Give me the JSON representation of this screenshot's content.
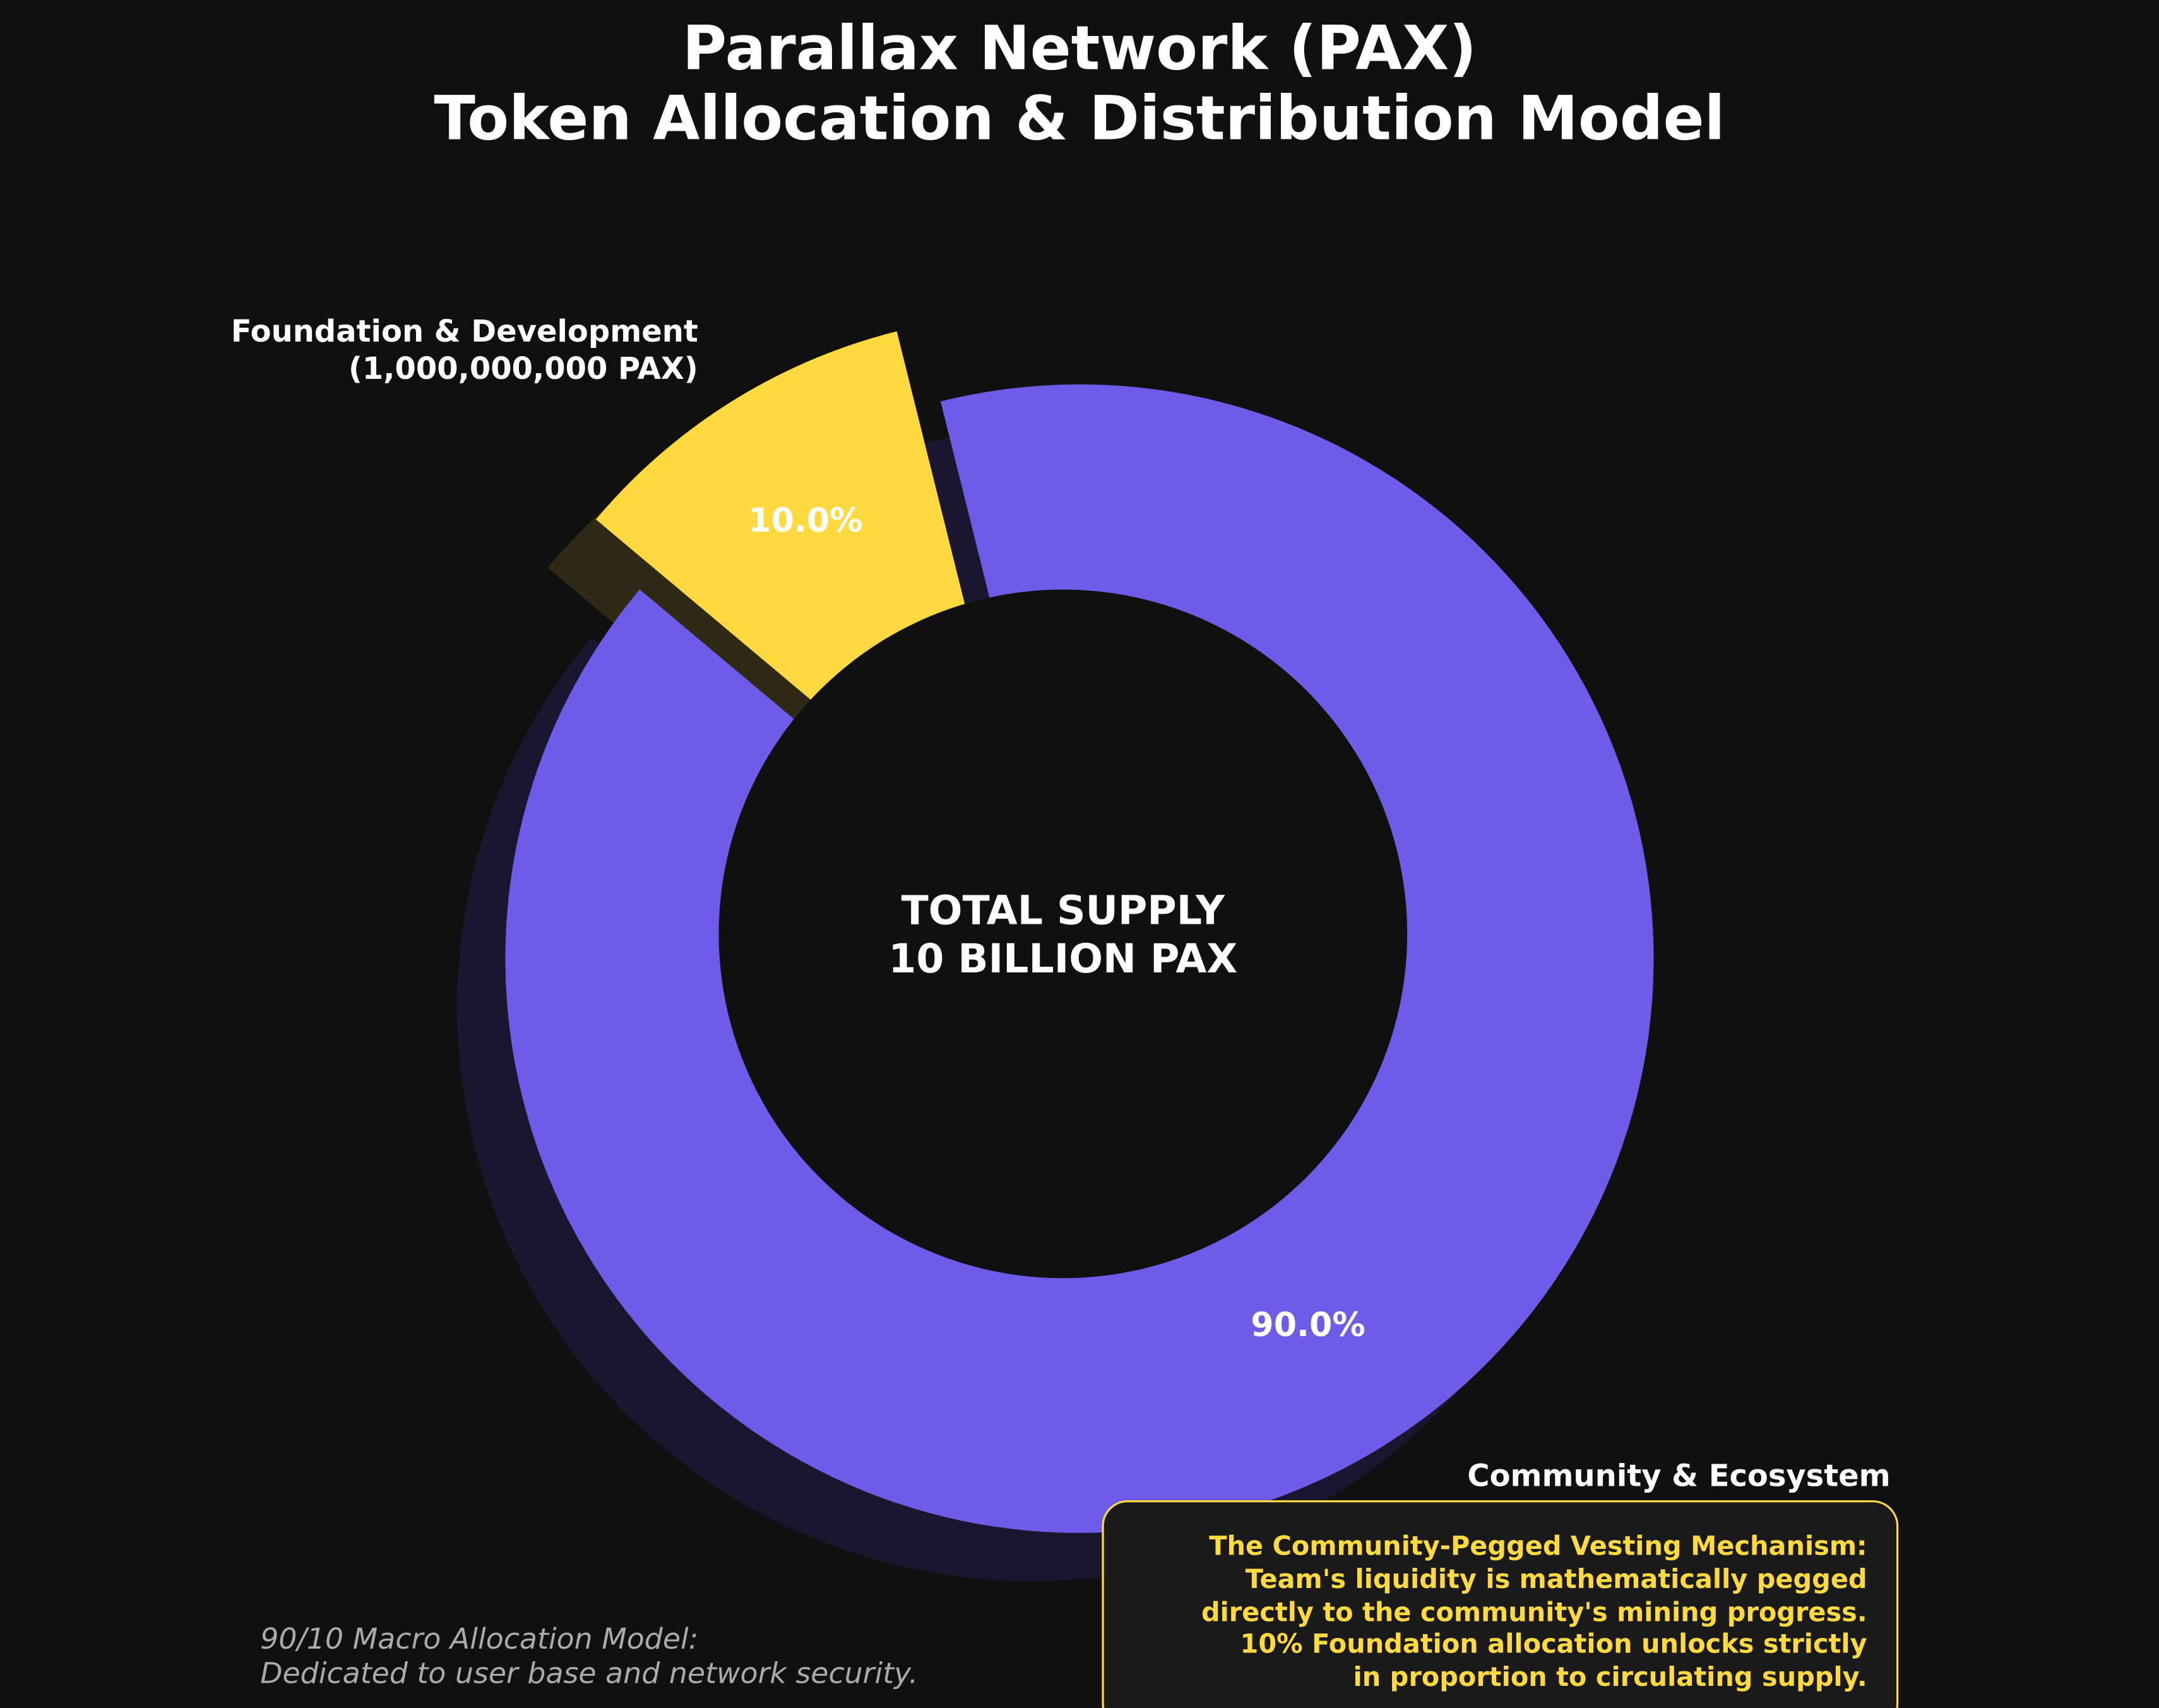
{
  "chart_data": {
    "type": "pie",
    "variant": "donut",
    "title": [
      "Parallax Network (PAX)",
      "Token Allocation & Distribution Model"
    ],
    "center_label": [
      "TOTAL SUPPLY",
      "10 BILLION PAX"
    ],
    "slices": [
      {
        "name": "Community & Ecosystem",
        "value": 90.0,
        "label": "90.0%",
        "color": "#6c5ce7",
        "shadow": "#1a1630",
        "exploded": false
      },
      {
        "name": "Foundation & Development",
        "detail": "(1,000,000,000 PAX)",
        "value": 10.0,
        "label": "10.0%",
        "color": "#ffd940",
        "shadow": "#2f2915",
        "exploded": true
      }
    ],
    "annotation": {
      "lines": [
        "The Community-Pegged Vesting Mechanism:",
        "Team's liquidity is mathematically pegged",
        "directly to the community's mining progress.",
        "10% Foundation allocation unlocks strictly",
        "in proportion to circulating supply."
      ],
      "color": "#ffd940"
    },
    "footnote": [
      "90/10 Macro Allocation Model:",
      "Dedicated to user base and network security."
    ]
  },
  "colors": {
    "background": "#101010",
    "text": "#ffffff",
    "footnote": "#aaaaaa",
    "box_fill": "#1a1a1a"
  }
}
